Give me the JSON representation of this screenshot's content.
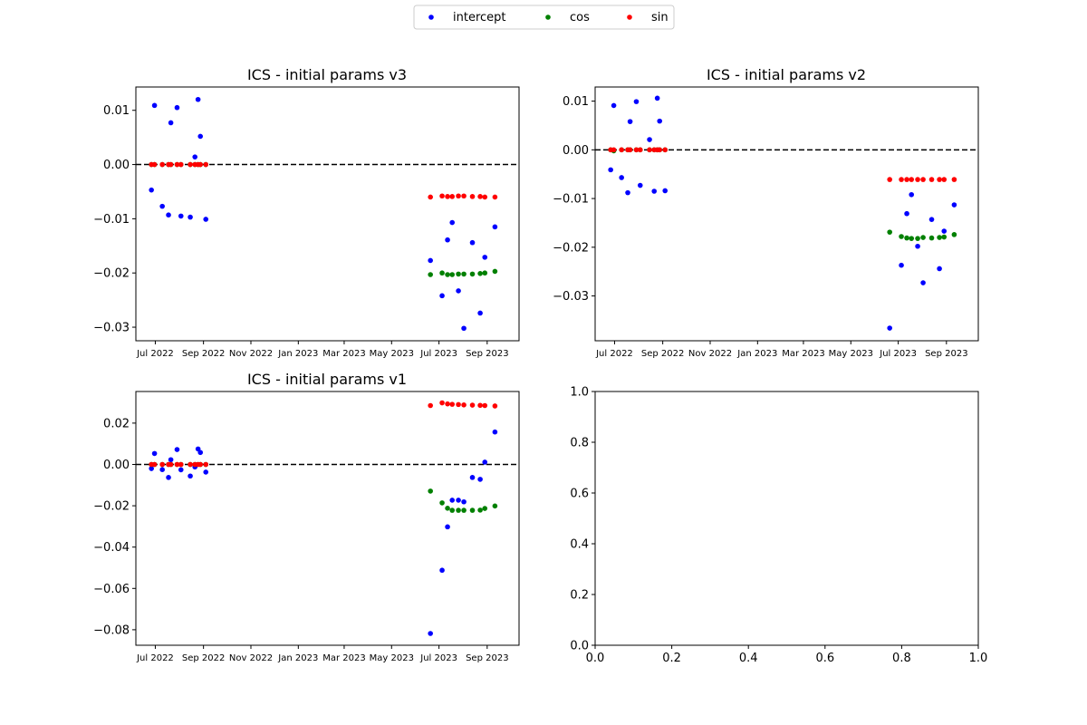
{
  "legend": {
    "placement": "top-center",
    "entries": [
      {
        "label": "intercept",
        "color": "#0000ff"
      },
      {
        "label": "cos",
        "color": "#008000"
      },
      {
        "label": "sin",
        "color": "#ff0000"
      }
    ]
  },
  "colors": {
    "intercept": "#0000ff",
    "cos": "#008000",
    "sin": "#ff0000",
    "reference_line": "#000000"
  },
  "chart_data": [
    {
      "type": "scatter",
      "title": "ICS - initial params v3",
      "xlabel": "",
      "ylabel": "",
      "xlim": [
        "2022-06-06",
        "2023-10-12"
      ],
      "ylim": [
        -0.0325,
        0.0143
      ],
      "x_ticks": [
        {
          "value": "2022-07-01",
          "label": "Jul 2022"
        },
        {
          "value": "2022-09-01",
          "label": "Sep 2022"
        },
        {
          "value": "2022-11-01",
          "label": "Nov 2022"
        },
        {
          "value": "2023-01-01",
          "label": "Jan 2023"
        },
        {
          "value": "2023-03-01",
          "label": "Mar 2023"
        },
        {
          "value": "2023-05-01",
          "label": "May 2023"
        },
        {
          "value": "2023-07-01",
          "label": "Jul 2023"
        },
        {
          "value": "2023-09-01",
          "label": "Sep 2023"
        }
      ],
      "y_ticks": [
        {
          "value": 0.01,
          "label": "0.01"
        },
        {
          "value": 0.0,
          "label": "0.00"
        },
        {
          "value": -0.01,
          "label": "−0.01"
        },
        {
          "value": -0.02,
          "label": "−0.02"
        },
        {
          "value": -0.03,
          "label": "−0.03"
        }
      ],
      "reference_line_y": 0.0,
      "series": [
        {
          "name": "intercept",
          "color": "#0000ff",
          "x": [
            "2022-06-26",
            "2022-06-30",
            "2022-07-10",
            "2022-07-18",
            "2022-07-21",
            "2022-07-29",
            "2022-08-03",
            "2022-08-15",
            "2022-08-21",
            "2022-08-25",
            "2022-08-28",
            "2022-09-04",
            "2023-06-20",
            "2023-07-05",
            "2023-07-12",
            "2023-07-18",
            "2023-07-26",
            "2023-08-02",
            "2023-08-13",
            "2023-08-23",
            "2023-08-29",
            "2023-09-11"
          ],
          "y": [
            -0.0047,
            0.0109,
            -0.0077,
            -0.0093,
            0.0077,
            0.0105,
            -0.0095,
            -0.0097,
            0.0014,
            0.012,
            0.0052,
            -0.0101,
            -0.0177,
            -0.0242,
            -0.0139,
            -0.0107,
            -0.0233,
            -0.0302,
            -0.0144,
            -0.0274,
            -0.0171,
            -0.0115
          ]
        },
        {
          "name": "cos",
          "color": "#008000",
          "x": [
            "2022-06-26",
            "2022-06-30",
            "2022-07-10",
            "2022-07-18",
            "2022-07-21",
            "2022-07-29",
            "2022-08-03",
            "2022-08-15",
            "2022-08-21",
            "2022-08-25",
            "2022-08-28",
            "2022-09-04",
            "2023-06-20",
            "2023-07-05",
            "2023-07-12",
            "2023-07-18",
            "2023-07-26",
            "2023-08-02",
            "2023-08-13",
            "2023-08-23",
            "2023-08-29",
            "2023-09-11"
          ],
          "y": [
            0.0,
            0.0,
            0.0,
            0.0,
            0.0,
            0.0,
            0.0,
            0.0,
            0.0,
            0.0,
            0.0,
            0.0,
            -0.0203,
            -0.02,
            -0.0203,
            -0.0203,
            -0.0202,
            -0.0202,
            -0.0202,
            -0.0201,
            -0.02,
            -0.0197
          ]
        },
        {
          "name": "sin",
          "color": "#ff0000",
          "x": [
            "2022-06-26",
            "2022-06-30",
            "2022-07-10",
            "2022-07-18",
            "2022-07-21",
            "2022-07-29",
            "2022-08-03",
            "2022-08-15",
            "2022-08-21",
            "2022-08-25",
            "2022-08-28",
            "2022-09-04",
            "2023-06-20",
            "2023-07-05",
            "2023-07-12",
            "2023-07-18",
            "2023-07-26",
            "2023-08-02",
            "2023-08-13",
            "2023-08-23",
            "2023-08-29",
            "2023-09-11"
          ],
          "y": [
            0.0,
            0.0,
            0.0,
            0.0,
            0.0,
            0.0,
            0.0,
            0.0,
            0.0,
            0.0,
            0.0,
            0.0,
            -0.006,
            -0.0058,
            -0.0059,
            -0.0059,
            -0.0058,
            -0.0058,
            -0.0059,
            -0.0059,
            -0.006,
            -0.006
          ]
        }
      ]
    },
    {
      "type": "scatter",
      "title": "ICS - initial params v2",
      "xlabel": "",
      "ylabel": "",
      "xlim": [
        "2022-06-06",
        "2023-10-12"
      ],
      "ylim": [
        -0.0392,
        0.0129
      ],
      "x_ticks": [
        {
          "value": "2022-07-01",
          "label": "Jul 2022"
        },
        {
          "value": "2022-09-01",
          "label": "Sep 2022"
        },
        {
          "value": "2022-11-01",
          "label": "Nov 2022"
        },
        {
          "value": "2023-01-01",
          "label": "Jan 2023"
        },
        {
          "value": "2023-03-01",
          "label": "Mar 2023"
        },
        {
          "value": "2023-05-01",
          "label": "May 2023"
        },
        {
          "value": "2023-07-01",
          "label": "Jul 2023"
        },
        {
          "value": "2023-09-01",
          "label": "Sep 2023"
        }
      ],
      "y_ticks": [
        {
          "value": 0.01,
          "label": "0.01"
        },
        {
          "value": 0.0,
          "label": "0.00"
        },
        {
          "value": -0.01,
          "label": "−0.01"
        },
        {
          "value": -0.02,
          "label": "−0.02"
        },
        {
          "value": -0.03,
          "label": "−0.03"
        }
      ],
      "reference_line_y": 0.0,
      "series": [
        {
          "name": "intercept",
          "color": "#0000ff",
          "x": [
            "2022-06-26",
            "2022-06-30",
            "2022-07-10",
            "2022-07-18",
            "2022-07-21",
            "2022-07-29",
            "2022-08-03",
            "2022-08-15",
            "2022-08-21",
            "2022-08-25",
            "2022-08-28",
            "2022-09-04",
            "2023-06-20",
            "2023-07-05",
            "2023-07-12",
            "2023-07-18",
            "2023-07-26",
            "2023-08-02",
            "2023-08-13",
            "2023-08-23",
            "2023-08-29",
            "2023-09-11"
          ],
          "y": [
            -0.0041,
            0.0091,
            -0.0057,
            -0.0088,
            0.0058,
            0.0099,
            -0.0073,
            0.0021,
            -0.0085,
            0.0106,
            0.0059,
            -0.0084,
            -0.0366,
            -0.0237,
            -0.0131,
            -0.0092,
            -0.0198,
            -0.0273,
            -0.0143,
            -0.0244,
            -0.0167,
            -0.0113
          ]
        },
        {
          "name": "cos",
          "color": "#008000",
          "x": [
            "2022-06-26",
            "2022-06-30",
            "2022-07-10",
            "2022-07-18",
            "2022-07-21",
            "2022-07-29",
            "2022-08-03",
            "2022-08-15",
            "2022-08-21",
            "2022-08-25",
            "2022-08-28",
            "2022-09-04",
            "2023-06-20",
            "2023-07-05",
            "2023-07-12",
            "2023-07-18",
            "2023-07-26",
            "2023-08-02",
            "2023-08-13",
            "2023-08-23",
            "2023-08-29",
            "2023-09-11"
          ],
          "y": [
            0.0,
            -0.0002,
            0.0,
            0.0,
            0.0,
            0.0,
            0.0,
            0.0,
            0.0,
            0.0,
            0.0,
            0.0,
            -0.0169,
            -0.0178,
            -0.0181,
            -0.0182,
            -0.0182,
            -0.018,
            -0.0181,
            -0.018,
            -0.0179,
            -0.0174
          ]
        },
        {
          "name": "sin",
          "color": "#ff0000",
          "x": [
            "2022-06-26",
            "2022-06-30",
            "2022-07-10",
            "2022-07-18",
            "2022-07-21",
            "2022-07-29",
            "2022-08-03",
            "2022-08-15",
            "2022-08-21",
            "2022-08-25",
            "2022-08-28",
            "2022-09-04",
            "2023-06-20",
            "2023-07-05",
            "2023-07-12",
            "2023-07-18",
            "2023-07-26",
            "2023-08-02",
            "2023-08-13",
            "2023-08-23",
            "2023-08-29",
            "2023-09-11"
          ],
          "y": [
            0.0,
            0.0,
            0.0,
            0.0,
            0.0,
            0.0,
            0.0,
            0.0,
            0.0,
            0.0,
            0.0,
            0.0,
            -0.0061,
            -0.0061,
            -0.0061,
            -0.0061,
            -0.0061,
            -0.0061,
            -0.0061,
            -0.0061,
            -0.0061,
            -0.0061
          ]
        }
      ]
    },
    {
      "type": "scatter",
      "title": "ICS - initial params v1",
      "xlabel": "",
      "ylabel": "",
      "xlim": [
        "2022-06-06",
        "2023-10-12"
      ],
      "ylim": [
        -0.0875,
        0.0353
      ],
      "x_ticks": [
        {
          "value": "2022-07-01",
          "label": "Jul 2022"
        },
        {
          "value": "2022-09-01",
          "label": "Sep 2022"
        },
        {
          "value": "2022-11-01",
          "label": "Nov 2022"
        },
        {
          "value": "2023-01-01",
          "label": "Jan 2023"
        },
        {
          "value": "2023-03-01",
          "label": "Mar 2023"
        },
        {
          "value": "2023-05-01",
          "label": "May 2023"
        },
        {
          "value": "2023-07-01",
          "label": "Jul 2023"
        },
        {
          "value": "2023-09-01",
          "label": "Sep 2023"
        }
      ],
      "y_ticks": [
        {
          "value": 0.02,
          "label": "0.02"
        },
        {
          "value": 0.0,
          "label": "0.00"
        },
        {
          "value": -0.02,
          "label": "−0.02"
        },
        {
          "value": -0.04,
          "label": "−0.04"
        },
        {
          "value": -0.06,
          "label": "−0.06"
        },
        {
          "value": -0.08,
          "label": "−0.08"
        }
      ],
      "reference_line_y": 0.0,
      "series": [
        {
          "name": "intercept",
          "color": "#0000ff",
          "x": [
            "2022-06-26",
            "2022-06-30",
            "2022-07-10",
            "2022-07-18",
            "2022-07-21",
            "2022-07-29",
            "2022-08-03",
            "2022-08-15",
            "2022-08-21",
            "2022-08-25",
            "2022-08-28",
            "2022-09-04",
            "2023-06-20",
            "2023-07-05",
            "2023-07-12",
            "2023-07-18",
            "2023-07-26",
            "2023-08-02",
            "2023-08-13",
            "2023-08-23",
            "2023-08-29",
            "2023-09-11"
          ],
          "y": [
            -0.002,
            0.0053,
            -0.0025,
            -0.0063,
            0.0023,
            0.0072,
            -0.0026,
            -0.0056,
            -0.0012,
            0.0075,
            0.0058,
            -0.0037,
            -0.0818,
            -0.0512,
            -0.0302,
            -0.0173,
            -0.0173,
            -0.0181,
            -0.0063,
            -0.0072,
            0.0011,
            0.0157
          ]
        },
        {
          "name": "cos",
          "color": "#008000",
          "x": [
            "2022-06-26",
            "2022-06-30",
            "2022-07-10",
            "2022-07-18",
            "2022-07-21",
            "2022-07-29",
            "2022-08-03",
            "2022-08-15",
            "2022-08-21",
            "2022-08-25",
            "2022-08-28",
            "2022-09-04",
            "2023-06-20",
            "2023-07-05",
            "2023-07-12",
            "2023-07-18",
            "2023-07-26",
            "2023-08-02",
            "2023-08-13",
            "2023-08-23",
            "2023-08-29",
            "2023-09-11"
          ],
          "y": [
            0.0,
            0.0,
            0.0,
            0.0,
            0.0,
            0.0,
            0.0,
            0.0,
            0.0,
            0.0,
            0.0,
            0.0,
            -0.0129,
            -0.0186,
            -0.0212,
            -0.0222,
            -0.0222,
            -0.0222,
            -0.0222,
            -0.0221,
            -0.0213,
            -0.0201
          ]
        },
        {
          "name": "sin",
          "color": "#ff0000",
          "x": [
            "2022-06-26",
            "2022-06-30",
            "2022-07-10",
            "2022-07-18",
            "2022-07-21",
            "2022-07-29",
            "2022-08-03",
            "2022-08-15",
            "2022-08-21",
            "2022-08-25",
            "2022-08-28",
            "2022-09-04",
            "2023-06-20",
            "2023-07-05",
            "2023-07-12",
            "2023-07-18",
            "2023-07-26",
            "2023-08-02",
            "2023-08-13",
            "2023-08-23",
            "2023-08-29",
            "2023-09-11"
          ],
          "y": [
            0.0,
            0.0,
            0.0,
            0.0,
            0.0,
            0.0,
            0.0,
            0.0,
            0.0,
            0.0,
            0.0,
            0.0,
            0.0285,
            0.0298,
            0.0293,
            0.0291,
            0.029,
            0.0288,
            0.0287,
            0.0286,
            0.0285,
            0.0283
          ]
        }
      ]
    },
    {
      "type": "scatter",
      "title": "",
      "xlabel": "",
      "ylabel": "",
      "xlim": [
        0.0,
        1.0
      ],
      "ylim": [
        0.0,
        1.0
      ],
      "x_ticks": [
        {
          "value": 0.0,
          "label": "0.0"
        },
        {
          "value": 0.2,
          "label": "0.2"
        },
        {
          "value": 0.4,
          "label": "0.4"
        },
        {
          "value": 0.6,
          "label": "0.6"
        },
        {
          "value": 0.8,
          "label": "0.8"
        },
        {
          "value": 1.0,
          "label": "1.0"
        }
      ],
      "y_ticks": [
        {
          "value": 0.0,
          "label": "0.0"
        },
        {
          "value": 0.2,
          "label": "0.2"
        },
        {
          "value": 0.4,
          "label": "0.4"
        },
        {
          "value": 0.6,
          "label": "0.6"
        },
        {
          "value": 0.8,
          "label": "0.8"
        },
        {
          "value": 1.0,
          "label": "1.0"
        }
      ],
      "series": []
    }
  ]
}
